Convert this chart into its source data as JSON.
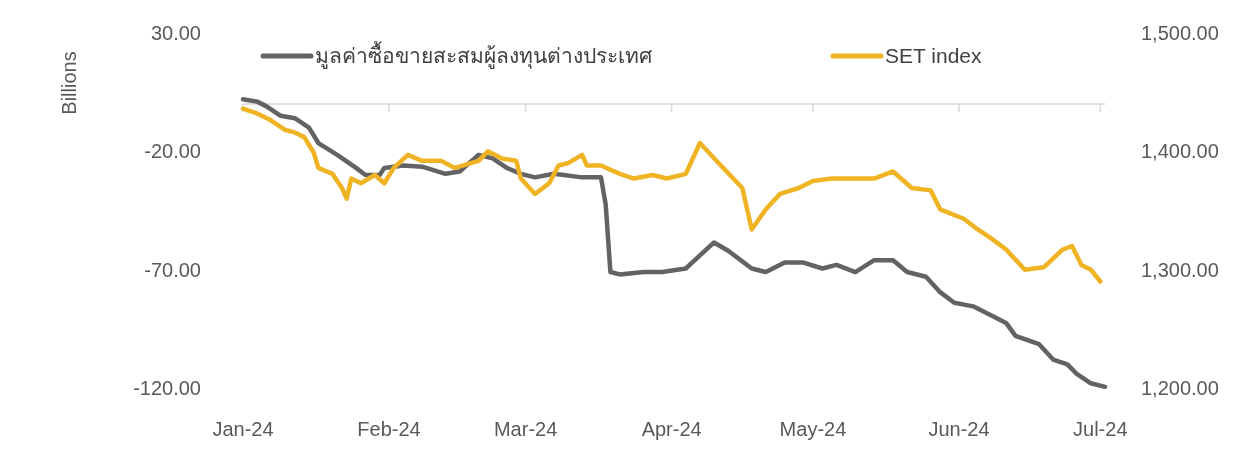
{
  "chart_data": {
    "type": "line",
    "ylabel": "Billions",
    "legend": "top",
    "xlim": [
      "2024-01-01",
      "2024-07-02"
    ],
    "xticks": [
      {
        "value": "2024-01-01",
        "label": "Jan-24"
      },
      {
        "value": "2024-02-01",
        "label": "Feb-24"
      },
      {
        "value": "2024-03-01",
        "label": "Mar-24"
      },
      {
        "value": "2024-04-01",
        "label": "Apr-24"
      },
      {
        "value": "2024-05-01",
        "label": "May-24"
      },
      {
        "value": "2024-06-01",
        "label": "Jun-24"
      },
      {
        "value": "2024-07-01",
        "label": "Jul-24"
      }
    ],
    "ylim": [
      -120,
      30
    ],
    "yticks": [
      {
        "value": 30,
        "label": "30.00"
      },
      {
        "value": -20,
        "label": "-20.00"
      },
      {
        "value": -70,
        "label": "-70.00"
      },
      {
        "value": -120,
        "label": "-120.00"
      }
    ],
    "y2lim": [
      1200,
      1500
    ],
    "y2ticks": [
      {
        "value": 1500,
        "label": "1,500.00"
      },
      {
        "value": 1400,
        "label": "1,400.00"
      },
      {
        "value": 1300,
        "label": "1,300.00"
      },
      {
        "value": 1200,
        "label": "1,200.00"
      }
    ],
    "series": [
      {
        "name": "มูลค่าซื้อขายสะสมผู้ลงทุนต่างประเทศ",
        "color": "#636363",
        "x": [
          "2024-01-01",
          "2024-01-04",
          "2024-01-06",
          "2024-01-09",
          "2024-01-12",
          "2024-01-15",
          "2024-01-17",
          "2024-01-21",
          "2024-01-25",
          "2024-01-27",
          "2024-01-30",
          "2024-01-31",
          "2024-02-04",
          "2024-02-08",
          "2024-02-13",
          "2024-02-16",
          "2024-02-20",
          "2024-02-23",
          "2024-02-26",
          "2024-02-29",
          "2024-03-03",
          "2024-03-07",
          "2024-03-13",
          "2024-03-17",
          "2024-03-18",
          "2024-03-19",
          "2024-03-21",
          "2024-03-26",
          "2024-03-30",
          "2024-04-04",
          "2024-04-07",
          "2024-04-10",
          "2024-04-13",
          "2024-04-18",
          "2024-04-21",
          "2024-04-25",
          "2024-04-29",
          "2024-05-03",
          "2024-05-06",
          "2024-05-10",
          "2024-05-14",
          "2024-05-18",
          "2024-05-21",
          "2024-05-25",
          "2024-05-28",
          "2024-05-31",
          "2024-06-04",
          "2024-06-08",
          "2024-06-11",
          "2024-06-13",
          "2024-06-18",
          "2024-06-21",
          "2024-06-24",
          "2024-06-26",
          "2024-06-29",
          "2024-07-02"
        ],
        "values": [
          2,
          1,
          -1,
          -5,
          -6,
          -10,
          -16.5,
          -21.5,
          -27,
          -30,
          -30,
          -27,
          -26,
          -26.5,
          -29.5,
          -28.5,
          -21.5,
          -23,
          -27,
          -29.5,
          -31,
          -29.5,
          -31,
          -31,
          -42.5,
          -71,
          -72,
          -71,
          -71,
          -69.5,
          -64,
          -58.5,
          -62,
          -69.5,
          -71,
          -67,
          -67,
          -69.5,
          -68,
          -71,
          -66,
          -66,
          -71,
          -73,
          -79.5,
          -84,
          -85.5,
          -89.5,
          -92.5,
          -98,
          -101.5,
          -108,
          -110,
          -114,
          -118,
          -119.5
        ]
      },
      {
        "name": "SET index",
        "color": "#f0b323",
        "axis": "y2",
        "x": [
          "2024-01-01",
          "2024-01-04",
          "2024-01-07",
          "2024-01-10",
          "2024-01-12",
          "2024-01-14",
          "2024-01-16",
          "2024-01-17",
          "2024-01-20",
          "2024-01-22",
          "2024-01-23",
          "2024-01-24",
          "2024-01-26",
          "2024-01-29",
          "2024-01-31",
          "2024-02-02",
          "2024-02-05",
          "2024-02-08",
          "2024-02-12",
          "2024-02-15",
          "2024-02-20",
          "2024-02-22",
          "2024-02-25",
          "2024-02-28",
          "2024-02-29",
          "2024-03-03",
          "2024-03-06",
          "2024-03-08",
          "2024-03-10",
          "2024-03-13",
          "2024-03-14",
          "2024-03-17",
          "2024-03-21",
          "2024-03-24",
          "2024-03-28",
          "2024-03-31",
          "2024-04-04",
          "2024-04-07",
          "2024-04-11",
          "2024-04-16",
          "2024-04-18",
          "2024-04-21",
          "2024-04-24",
          "2024-04-28",
          "2024-05-01",
          "2024-05-05",
          "2024-05-09",
          "2024-05-14",
          "2024-05-18",
          "2024-05-22",
          "2024-05-26",
          "2024-05-28",
          "2024-06-02",
          "2024-06-05",
          "2024-06-08",
          "2024-06-11",
          "2024-06-15",
          "2024-06-19",
          "2024-06-23",
          "2024-06-25",
          "2024-06-27",
          "2024-06-29",
          "2024-07-01"
        ],
        "values": [
          1436,
          1432,
          1426,
          1418,
          1416,
          1412,
          1399,
          1386,
          1381,
          1369,
          1360,
          1377,
          1373,
          1380,
          1373,
          1386,
          1397,
          1392,
          1392,
          1386,
          1392,
          1400,
          1394,
          1392,
          1377,
          1364,
          1373,
          1388,
          1390,
          1397,
          1388,
          1388,
          1381,
          1377,
          1380,
          1377,
          1381,
          1407,
          1390,
          1369,
          1334,
          1351,
          1364,
          1369,
          1375,
          1377,
          1377,
          1377,
          1383,
          1369,
          1367,
          1351,
          1343,
          1334,
          1326,
          1317,
          1300,
          1302,
          1317,
          1320,
          1304,
          1300,
          1290
        ]
      }
    ]
  }
}
